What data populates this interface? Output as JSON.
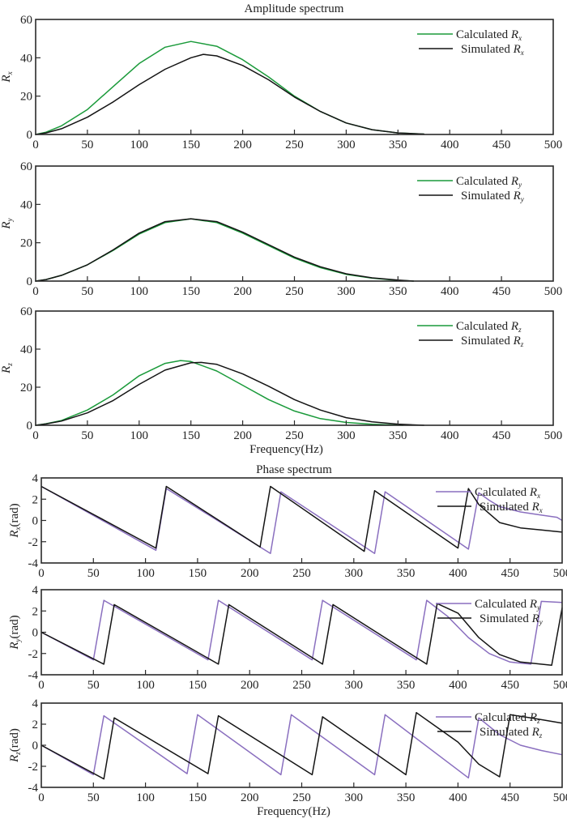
{
  "colors": {
    "calculated_amplitude": "#1a9a3a",
    "calculated_phase": "#8a6fbf",
    "simulated": "#141414"
  },
  "section_titles": {
    "amplitude": "Amplitude spectrum",
    "phase": "Phase spectrum"
  },
  "chart_data": [
    {
      "type": "line",
      "group": "amplitude",
      "title": "Amplitude spectrum",
      "ylabel_symbol": "R",
      "ylabel_sub": "x",
      "ylabel_suffix": "",
      "xlabel": "",
      "xlim": [
        0,
        500
      ],
      "ylim": [
        0,
        60
      ],
      "xticks": [
        0,
        50,
        100,
        150,
        200,
        250,
        300,
        350,
        400,
        450,
        500
      ],
      "yticks": [
        0,
        20,
        40,
        60
      ],
      "legend_position": "top-right",
      "series": [
        {
          "name": "Calculated R_x",
          "label": "Calculated ",
          "sub": "x",
          "kind": "calculated",
          "x": [
            0,
            10,
            25,
            50,
            75,
            100,
            125,
            150,
            175,
            200,
            225,
            250,
            275,
            300,
            325,
            350,
            375
          ],
          "y": [
            0,
            1.2,
            4.5,
            13,
            25,
            37,
            45.5,
            48.5,
            46,
            39,
            30,
            20,
            12,
            6,
            2.5,
            0.8,
            0.2
          ]
        },
        {
          "name": "Simulated R_x",
          "label": "Simulated ",
          "sub": "x",
          "kind": "simulated",
          "x": [
            0,
            10,
            25,
            50,
            75,
            100,
            125,
            150,
            162,
            175,
            200,
            225,
            250,
            275,
            300,
            325,
            350,
            375
          ],
          "y": [
            0,
            0.8,
            3,
            9,
            17,
            26,
            34,
            40,
            41.8,
            41,
            36,
            28.5,
            19.5,
            12,
            6,
            2.5,
            0.8,
            0.2
          ]
        }
      ]
    },
    {
      "type": "line",
      "group": "amplitude",
      "title": "",
      "ylabel_symbol": "R",
      "ylabel_sub": "y",
      "ylabel_suffix": "",
      "xlabel": "",
      "xlim": [
        0,
        500
      ],
      "ylim": [
        0,
        60
      ],
      "xticks": [
        0,
        50,
        100,
        150,
        200,
        250,
        300,
        350,
        400,
        450,
        500
      ],
      "yticks": [
        0,
        20,
        40,
        60
      ],
      "legend_position": "top-right",
      "series": [
        {
          "name": "Calculated R_y",
          "label": "Calculated ",
          "sub": "y",
          "kind": "calculated",
          "x": [
            0,
            10,
            25,
            50,
            75,
            100,
            125,
            150,
            175,
            200,
            225,
            250,
            275,
            300,
            325,
            350,
            365
          ],
          "y": [
            0,
            0.8,
            3,
            8.5,
            16,
            24.5,
            30.5,
            32.5,
            30.5,
            25,
            18.5,
            12,
            7,
            3.5,
            1.5,
            0.4,
            0
          ]
        },
        {
          "name": "Simulated R_y",
          "label": "Simulated ",
          "sub": "y",
          "kind": "simulated",
          "x": [
            0,
            10,
            25,
            50,
            75,
            100,
            125,
            150,
            175,
            200,
            225,
            250,
            275,
            300,
            325,
            350,
            365
          ],
          "y": [
            0,
            0.8,
            3,
            8.5,
            16.3,
            25,
            31,
            32.5,
            31,
            25.5,
            19,
            12.5,
            7.5,
            3.8,
            1.7,
            0.5,
            0
          ]
        }
      ]
    },
    {
      "type": "line",
      "group": "amplitude",
      "title": "",
      "ylabel_symbol": "R",
      "ylabel_sub": "z",
      "ylabel_suffix": "",
      "xlabel": "Frequency(Hz)",
      "xlim": [
        0,
        500
      ],
      "ylim": [
        0,
        60
      ],
      "xticks": [
        0,
        50,
        100,
        150,
        200,
        250,
        300,
        350,
        400,
        450,
        500
      ],
      "yticks": [
        0,
        20,
        40,
        60
      ],
      "legend_position": "top-right",
      "series": [
        {
          "name": "Calculated R_z",
          "label": "Calculated ",
          "sub": "z",
          "kind": "calculated",
          "x": [
            0,
            10,
            25,
            50,
            75,
            100,
            125,
            140,
            150,
            175,
            200,
            225,
            250,
            275,
            300,
            325,
            355
          ],
          "y": [
            0,
            0.8,
            2.5,
            8,
            16,
            26,
            32.5,
            34,
            33.5,
            28.5,
            21,
            13.5,
            7.5,
            3.5,
            1.5,
            0.5,
            0
          ]
        },
        {
          "name": "Simulated R_z",
          "label": "Simulated ",
          "sub": "z",
          "kind": "simulated",
          "x": [
            0,
            10,
            25,
            50,
            75,
            100,
            125,
            150,
            160,
            175,
            200,
            225,
            250,
            275,
            300,
            325,
            350,
            375
          ],
          "y": [
            0,
            0.7,
            2.2,
            6.5,
            13,
            21.5,
            29,
            32.8,
            33,
            32,
            27,
            20.5,
            13.5,
            8,
            4,
            1.8,
            0.6,
            0
          ]
        }
      ]
    },
    {
      "type": "line",
      "group": "phase",
      "title": "Phase spectrum",
      "ylabel_symbol": "R",
      "ylabel_sub": "x",
      "ylabel_suffix": "(rad)",
      "xlabel": "",
      "xlim": [
        0,
        500
      ],
      "ylim": [
        -4,
        4
      ],
      "xticks": [
        0,
        50,
        100,
        150,
        200,
        250,
        300,
        350,
        400,
        450,
        500
      ],
      "yticks": [
        -4,
        -2,
        0,
        2,
        4
      ],
      "legend_position": "top-right",
      "series": [
        {
          "name": "Calculated R_x",
          "label": "Calculated ",
          "sub": "x",
          "kind": "calculated",
          "x": [
            0,
            110,
            120,
            220,
            230,
            320,
            330,
            410,
            420,
            430,
            440,
            460,
            480,
            495,
            500
          ],
          "y": [
            3.2,
            -2.8,
            3.0,
            -3.1,
            2.7,
            -3.1,
            2.7,
            -2.7,
            2.6,
            1.9,
            1.3,
            0.8,
            0.5,
            0.3,
            0.0
          ]
        },
        {
          "name": "Simulated R_x",
          "label": "Simulated ",
          "sub": "x",
          "kind": "simulated",
          "x": [
            0,
            110,
            120,
            210,
            220,
            310,
            320,
            400,
            410,
            420,
            440,
            460,
            480,
            500
          ],
          "y": [
            3.2,
            -2.6,
            3.2,
            -2.5,
            3.2,
            -2.9,
            2.8,
            -2.6,
            3.0,
            1.5,
            -0.2,
            -0.7,
            -0.9,
            -1.1
          ]
        }
      ]
    },
    {
      "type": "line",
      "group": "phase",
      "title": "",
      "ylabel_symbol": "R",
      "ylabel_sub": "y",
      "ylabel_suffix": "(rad)",
      "xlabel": "",
      "xlim": [
        0,
        500
      ],
      "ylim": [
        -4,
        4
      ],
      "xticks": [
        0,
        50,
        100,
        150,
        200,
        250,
        300,
        350,
        400,
        450,
        500
      ],
      "yticks": [
        -4,
        -2,
        0,
        2,
        4
      ],
      "legend_position": "top-right",
      "series": [
        {
          "name": "Calculated R_y",
          "label": "Calculated ",
          "sub": "y",
          "kind": "calculated",
          "x": [
            0,
            50,
            60,
            160,
            170,
            260,
            270,
            360,
            370,
            390,
            410,
            430,
            450,
            470,
            480,
            500
          ],
          "y": [
            0,
            -2.6,
            3.0,
            -2.6,
            3.0,
            -2.6,
            3.0,
            -2.6,
            3.0,
            1.5,
            -0.5,
            -2.0,
            -2.8,
            -3.0,
            2.9,
            2.8
          ]
        },
        {
          "name": "Simulated R_y",
          "label": "Simulated ",
          "sub": "y",
          "kind": "simulated",
          "x": [
            0,
            60,
            70,
            170,
            180,
            270,
            280,
            370,
            380,
            400,
            420,
            440,
            460,
            490,
            500
          ],
          "y": [
            0,
            -3.0,
            2.6,
            -3.0,
            2.6,
            -3.0,
            2.6,
            -3.0,
            2.7,
            1.8,
            -0.5,
            -2.1,
            -2.8,
            -3.1,
            2.3
          ]
        }
      ]
    },
    {
      "type": "line",
      "group": "phase",
      "title": "",
      "ylabel_symbol": "R",
      "ylabel_sub": "z",
      "ylabel_suffix": "(rad)",
      "xlabel": "Frequency(Hz)",
      "xlim": [
        0,
        500
      ],
      "ylim": [
        -4,
        4
      ],
      "xticks": [
        0,
        50,
        100,
        150,
        200,
        250,
        300,
        350,
        400,
        450,
        500
      ],
      "yticks": [
        -4,
        -2,
        0,
        2,
        4
      ],
      "legend_position": "top-right",
      "series": [
        {
          "name": "Calculated R_z",
          "label": "Calculated ",
          "sub": "z",
          "kind": "calculated",
          "x": [
            0,
            50,
            60,
            140,
            150,
            230,
            240,
            320,
            330,
            410,
            420,
            440,
            460,
            480,
            500
          ],
          "y": [
            0,
            -2.8,
            2.8,
            -2.7,
            2.9,
            -2.8,
            2.9,
            -2.8,
            2.9,
            -3.1,
            2.6,
            1.0,
            0.0,
            -0.5,
            -0.9
          ]
        },
        {
          "name": "Simulated R_z",
          "label": "Simulated ",
          "sub": "z",
          "kind": "simulated",
          "x": [
            0,
            60,
            70,
            160,
            170,
            260,
            270,
            350,
            360,
            400,
            420,
            440,
            450,
            470,
            500
          ],
          "y": [
            0,
            -3.2,
            2.6,
            -2.7,
            2.8,
            -2.8,
            2.7,
            -2.8,
            3.1,
            0.3,
            -1.8,
            -3.0,
            2.9,
            2.6,
            2.1
          ]
        }
      ]
    }
  ]
}
